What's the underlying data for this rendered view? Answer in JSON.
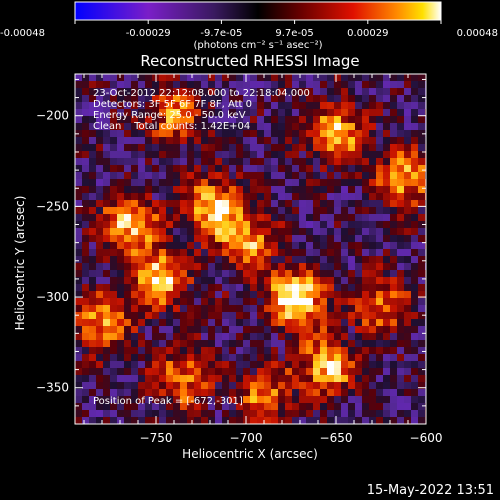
{
  "colorbar": {
    "tick_labels": [
      "-0.00048",
      "-0.00029",
      "-9.7e-05",
      "9.7e-05",
      "0.00029",
      "0.00048"
    ],
    "units": "(photons cm⁻² s⁻¹ asec⁻²)",
    "colors": [
      "#0000ff",
      "#7a1ec8",
      "#5a2a8a",
      "#1a1030",
      "#6b0000",
      "#e01000",
      "#ff8a00",
      "#ffe000",
      "#ffffff"
    ]
  },
  "annotations": {
    "line1": "23-Oct-2012 22:12:08.000 to 22:18:04.000",
    "line2": "Detectors: 3F 5F 6F 7F 8F, Att 0",
    "line3": "Energy Range: 25.0 - 50.0 keV",
    "line4": "Clean    Total counts: 1.42E+04",
    "peak": "Position of Peak = [-672,-301]"
  },
  "footer": {
    "timestamp": "15-May-2022 13:51"
  },
  "chart_data": {
    "type": "heatmap",
    "title": "Reconstructed RHESSI Image",
    "xlabel": "Heliocentric X (arcsec)",
    "ylabel": "Heliocentric Y (arcsec)",
    "xlim": [
      -795,
      -600
    ],
    "ylim": [
      -370,
      -177
    ],
    "xticks": [
      -750,
      -700,
      -650,
      -600
    ],
    "yticks": [
      -350,
      -300,
      -250,
      -200
    ],
    "xtick_labels": [
      "−750",
      "−700",
      "−650",
      "−600"
    ],
    "ytick_labels": [
      "−350",
      "−300",
      "−250",
      "−200"
    ],
    "value_range": [
      -0.00048,
      0.00048
    ],
    "peak_position": [
      -672,
      -301
    ],
    "sources": [
      {
        "x": -672,
        "y": -301,
        "intensity": 1.0
      },
      {
        "x": -655,
        "y": -338,
        "intensity": 0.75
      },
      {
        "x": -748,
        "y": -290,
        "intensity": 0.85
      },
      {
        "x": -765,
        "y": -260,
        "intensity": 0.8
      },
      {
        "x": -718,
        "y": -250,
        "intensity": 0.8
      },
      {
        "x": -700,
        "y": -270,
        "intensity": 0.7
      },
      {
        "x": -650,
        "y": -210,
        "intensity": 0.75
      },
      {
        "x": -612,
        "y": -235,
        "intensity": 0.7
      },
      {
        "x": -625,
        "y": -305,
        "intensity": 0.55
      },
      {
        "x": -735,
        "y": -345,
        "intensity": 0.6
      },
      {
        "x": -690,
        "y": -355,
        "intensity": 0.55
      },
      {
        "x": -740,
        "y": -200,
        "intensity": 0.6
      },
      {
        "x": -780,
        "y": -315,
        "intensity": 0.65
      }
    ]
  }
}
